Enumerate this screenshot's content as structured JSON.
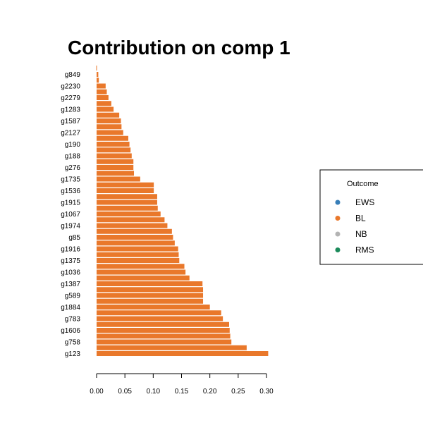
{
  "chart_data": {
    "type": "bar",
    "orientation": "horizontal",
    "title": "Contribution on comp 1",
    "bar_color": "#E9782B",
    "xlim": [
      0,
      0.3
    ],
    "xticks": [
      "0.00",
      "0.05",
      "0.10",
      "0.15",
      "0.20",
      "0.25",
      "0.30"
    ],
    "categories": [
      "g849",
      "",
      "g2230",
      "",
      "g2279",
      "",
      "g1283",
      "",
      "g1587",
      "",
      "g2127",
      "",
      "g190",
      "",
      "g188",
      "",
      "g276",
      "",
      "g1735",
      "",
      "g1536",
      "",
      "g1915",
      "",
      "g1067",
      "",
      "g1974",
      "",
      "g85",
      "",
      "g1916",
      "",
      "g1375",
      "",
      "g1036",
      "",
      "g1387",
      "",
      "g589",
      "",
      "g1884",
      "",
      "g783",
      "",
      "g1606",
      "",
      "g758",
      "",
      "g123"
    ],
    "values": [
      0.003,
      0.004,
      0.016,
      0.018,
      0.021,
      0.026,
      0.03,
      0.04,
      0.043,
      0.044,
      0.047,
      0.056,
      0.058,
      0.06,
      0.062,
      0.065,
      0.065,
      0.066,
      0.077,
      0.101,
      0.101,
      0.107,
      0.107,
      0.108,
      0.113,
      0.12,
      0.125,
      0.133,
      0.135,
      0.138,
      0.144,
      0.145,
      0.146,
      0.155,
      0.157,
      0.164,
      0.187,
      0.188,
      0.188,
      0.188,
      0.2,
      0.22,
      0.223,
      0.234,
      0.235,
      0.236,
      0.238,
      0.265,
      0.303
    ],
    "legend": {
      "title": "Outcome",
      "placement": "right",
      "items": [
        {
          "label": "EWS",
          "color": "#377EB8"
        },
        {
          "label": "BL",
          "color": "#E9782B"
        },
        {
          "label": "NB",
          "color": "#B3B3B3"
        },
        {
          "label": "RMS",
          "color": "#1B8A5A"
        }
      ]
    }
  }
}
